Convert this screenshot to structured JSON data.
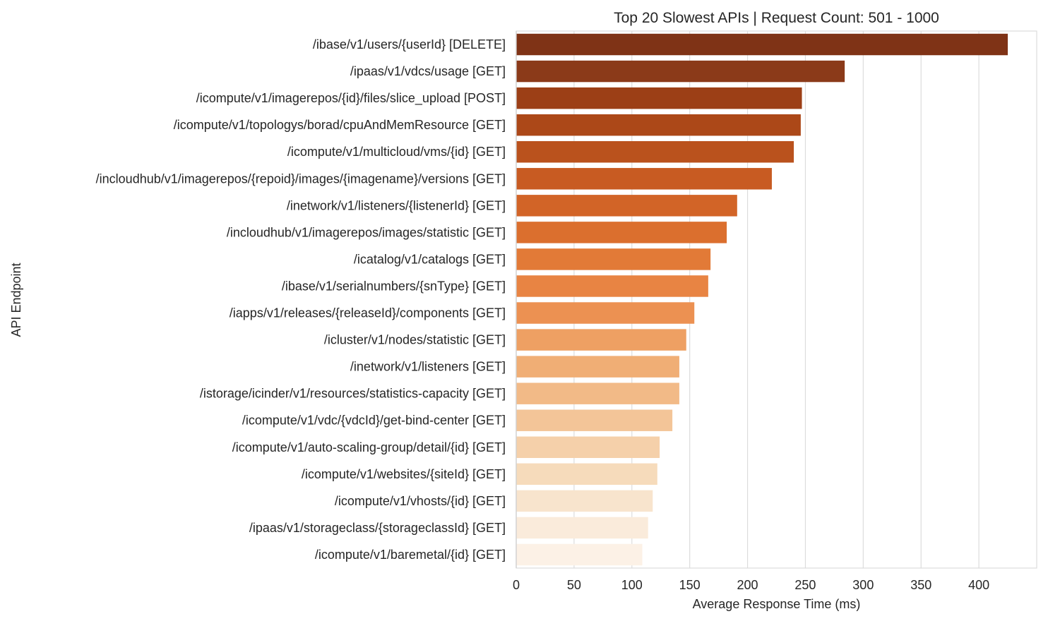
{
  "chart_data": {
    "type": "bar",
    "orientation": "horizontal",
    "title": "Top 20 Slowest APIs | Request Count: 501 - 1000",
    "xlabel": "Average Response Time (ms)",
    "ylabel": "API Endpoint",
    "xlim": [
      0,
      450
    ],
    "xticks": [
      "0",
      "50",
      "100",
      "150",
      "200",
      "250",
      "300",
      "350",
      "400"
    ],
    "grid": "vertical",
    "categories": [
      "/ibase/v1/users/{userId} [DELETE]",
      "/ipaas/v1/vdcs/usage [GET]",
      "/icompute/v1/imagerepos/{id}/files/slice_upload [POST]",
      "/icompute/v1/topologys/borad/cpuAndMemResource [GET]",
      "/icompute/v1/multicloud/vms/{id} [GET]",
      "/incloudhub/v1/imagerepos/{repoid}/images/{imagename}/versions [GET]",
      "/inetwork/v1/listeners/{listenerId} [GET]",
      "/incloudhub/v1/imagerepos/images/statistic [GET]",
      "/icatalog/v1/catalogs [GET]",
      "/ibase/v1/serialnumbers/{snType} [GET]",
      "/iapps/v1/releases/{releaseId}/components [GET]",
      "/icluster/v1/nodes/statistic [GET]",
      "/inetwork/v1/listeners [GET]",
      "/istorage/icinder/v1/resources/statistics-capacity [GET]",
      "/icompute/v1/vdc/{vdcId}/get-bind-center [GET]",
      "/icompute/v1/auto-scaling-group/detail/{id} [GET]",
      "/icompute/v1/websites/{siteId} [GET]",
      "/icompute/v1/vhosts/{id} [GET]",
      "/ipaas/v1/storageclass/{storageclassId} [GET]",
      "/icompute/v1/baremetal/{id} [GET]"
    ],
    "values": [
      425,
      284,
      247,
      246,
      240,
      221,
      191,
      182,
      168,
      166,
      154,
      147,
      141,
      141,
      135,
      124,
      122,
      118,
      114,
      109
    ],
    "colors": [
      "#7f3316",
      "#8b3a19",
      "#9c3f16",
      "#ac4818",
      "#ba521d",
      "#c85b22",
      "#d26427",
      "#db6f2e",
      "#e27a37",
      "#e88443",
      "#ec9152",
      "#eea063",
      "#f0ae75",
      "#f2ba87",
      "#f3c598",
      "#f5d0aa",
      "#f6dbbb",
      "#f8e4cd",
      "#faebdb",
      "#fcf1e6"
    ]
  }
}
